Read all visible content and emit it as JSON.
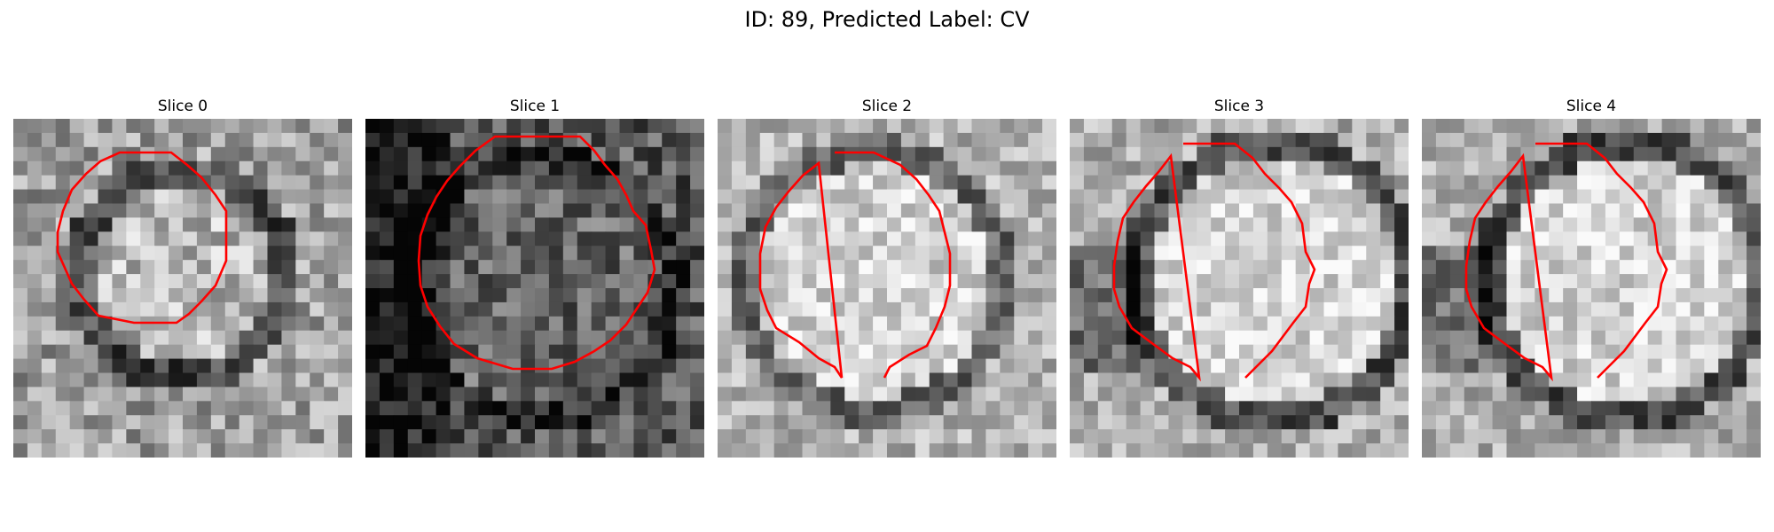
{
  "figure": {
    "title": "ID: 89, Predicted Label: CV"
  },
  "panels": [
    {
      "title": "Slice 0"
    },
    {
      "title": "Slice 1"
    },
    {
      "title": "Slice 2"
    },
    {
      "title": "Slice 3"
    },
    {
      "title": "Slice 4"
    }
  ],
  "colors": {
    "contour": "#ff0000",
    "background": "#ffffff"
  }
}
